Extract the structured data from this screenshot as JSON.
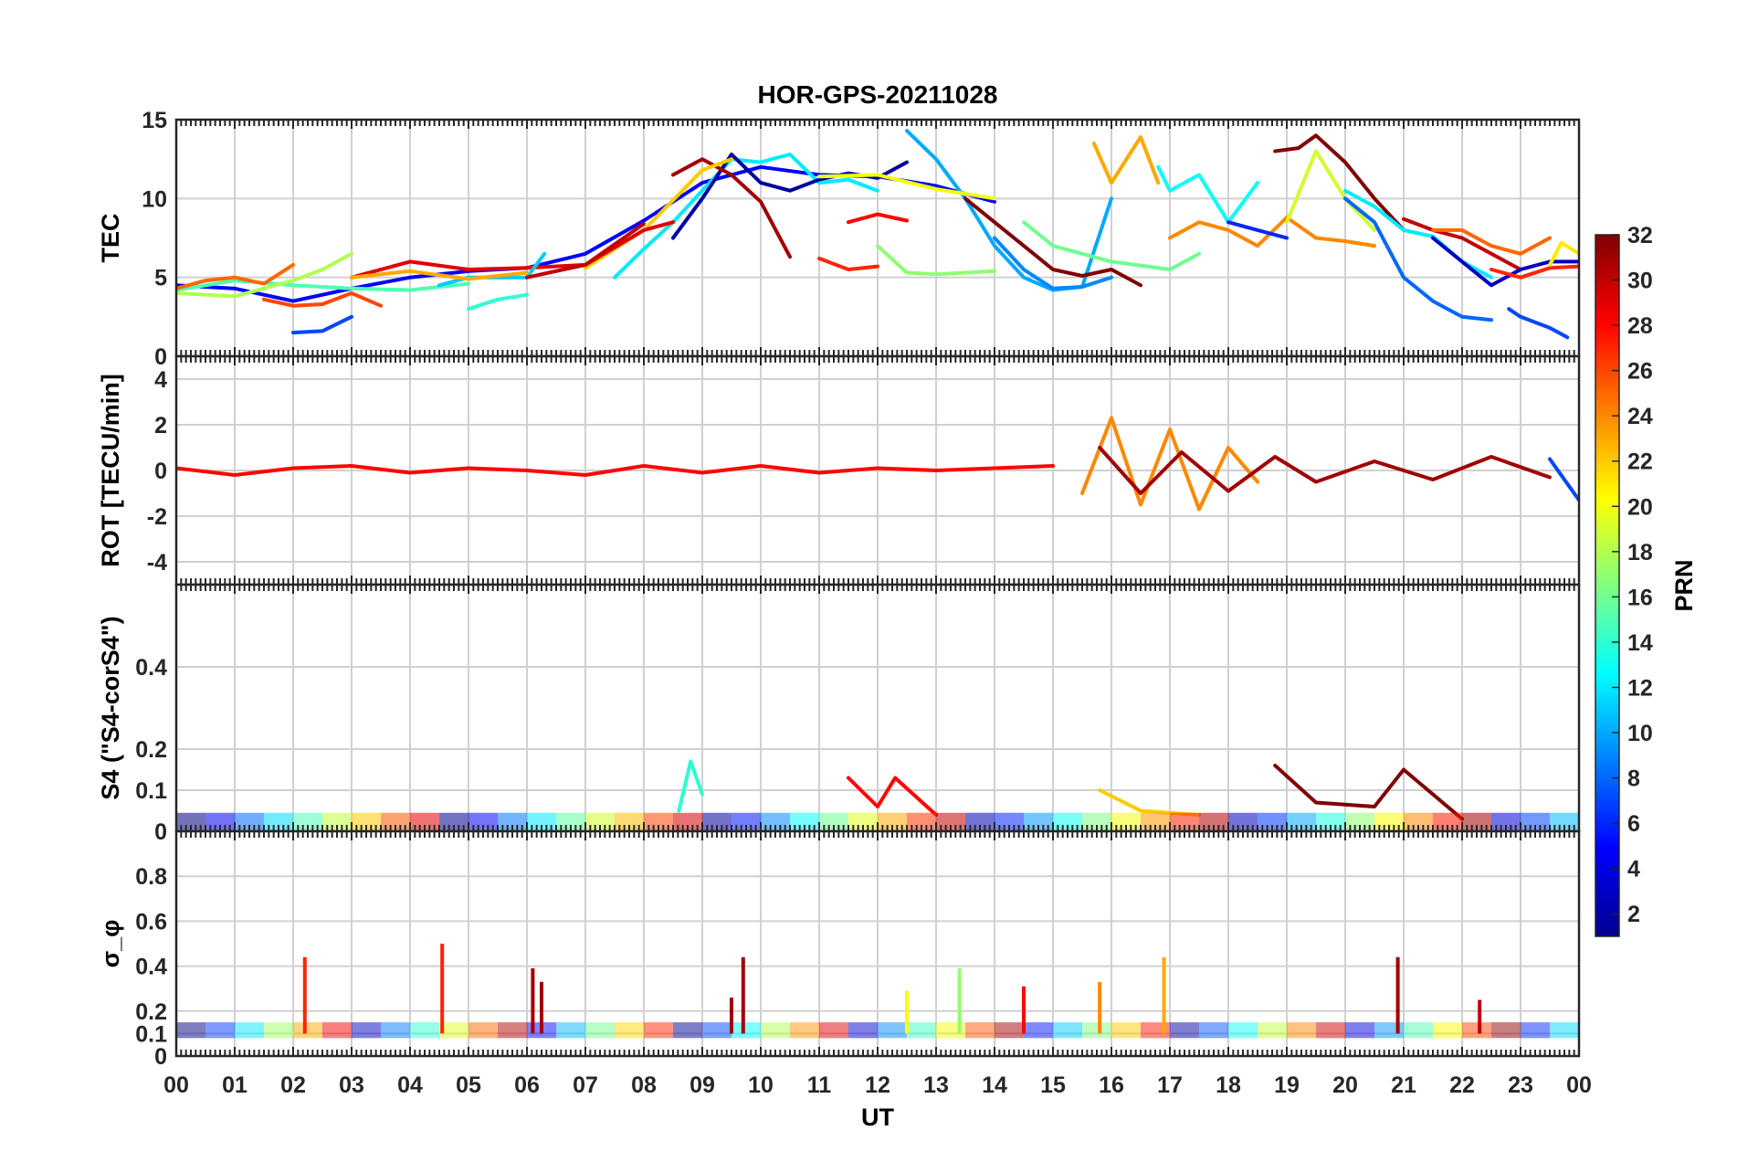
{
  "title": "HOR-GPS-20211028",
  "x_axis": {
    "label": "UT",
    "tick_labels": [
      "00",
      "01",
      "02",
      "03",
      "04",
      "05",
      "06",
      "07",
      "08",
      "09",
      "10",
      "11",
      "12",
      "13",
      "14",
      "15",
      "16",
      "17",
      "18",
      "19",
      "20",
      "21",
      "22",
      "23",
      "00"
    ]
  },
  "colorbar": {
    "label": "PRN",
    "range": [
      1,
      32
    ],
    "tick_labels": [
      "2",
      "4",
      "6",
      "8",
      "10",
      "12",
      "14",
      "16",
      "18",
      "20",
      "22",
      "24",
      "26",
      "28",
      "30",
      "32"
    ]
  },
  "chart_data": [
    {
      "type": "line",
      "id": "tec",
      "ylabel": "TEC",
      "ylim": [
        0,
        15
      ],
      "yticks": [
        0,
        5,
        10,
        15
      ],
      "ytick_labels": [
        "0",
        "5",
        "10",
        "15"
      ],
      "xlim": [
        0,
        24
      ],
      "series": [
        {
          "name": "PRN 5",
          "prn": 5,
          "x": [
            0.0,
            1.0,
            2.0,
            3.0,
            4.0,
            5.0,
            6.0,
            7.0,
            8.0,
            9.0,
            10.0,
            11.0,
            12.0,
            13.0,
            14.0
          ],
          "y": [
            4.5,
            4.3,
            3.5,
            4.3,
            5.0,
            5.4,
            5.6,
            6.5,
            8.6,
            11.0,
            12.0,
            11.5,
            11.4,
            10.8,
            9.8
          ]
        },
        {
          "name": "PRN 10",
          "prn": 10,
          "x": [
            12.5,
            13.0,
            13.5,
            14.0,
            14.5,
            15.0,
            15.5,
            16.0
          ],
          "y": [
            14.3,
            12.5,
            10.0,
            7.0,
            5.0,
            4.2,
            4.4,
            10.0
          ]
        },
        {
          "name": "PRN 12",
          "prn": 12,
          "x": [
            7.5,
            8.0,
            8.5,
            9.0,
            9.5,
            10.0,
            10.5,
            11.0,
            11.5,
            12.0
          ],
          "y": [
            5.0,
            6.8,
            8.5,
            10.5,
            12.5,
            12.3,
            12.8,
            11.0,
            11.2,
            10.5
          ]
        },
        {
          "name": "PRN 2",
          "prn": 2,
          "x": [
            8.5,
            9.0,
            9.5,
            10.0,
            10.5,
            11.0,
            11.5,
            12.0,
            12.5
          ],
          "y": [
            7.5,
            10.0,
            12.8,
            11.0,
            10.5,
            11.2,
            11.6,
            11.3,
            12.3
          ]
        },
        {
          "name": "PRN 20",
          "prn": 20,
          "x": [
            11.0,
            12.0,
            13.0,
            14.0
          ],
          "y": [
            11.4,
            11.5,
            10.6,
            10.0
          ]
        },
        {
          "name": "PRN 17",
          "prn": 17,
          "x": [
            12.0,
            12.5,
            13.0,
            14.0
          ],
          "y": [
            7.0,
            5.3,
            5.2,
            5.4
          ]
        },
        {
          "name": "PRN 27",
          "prn": 27,
          "x": [
            11.0,
            11.5,
            12.0
          ],
          "y": [
            6.2,
            5.5,
            5.7
          ]
        },
        {
          "name": "PRN 28",
          "prn": 28,
          "x": [
            11.5,
            12.0,
            12.5
          ],
          "y": [
            8.5,
            9.0,
            8.6
          ]
        },
        {
          "name": "PRN 31",
          "prn": 31,
          "x": [
            8.5,
            9.0,
            9.5,
            10.0,
            10.5
          ],
          "y": [
            11.5,
            12.5,
            11.5,
            9.8,
            6.3
          ]
        },
        {
          "name": "PRN 22",
          "prn": 22,
          "x": [
            7.0,
            8.0,
            9.0,
            9.5
          ],
          "y": [
            5.6,
            8.0,
            11.8,
            12.5
          ]
        },
        {
          "name": "PRN 29",
          "prn": 29,
          "x": [
            3.0,
            4.0,
            5.0,
            6.0,
            7.0,
            8.0,
            8.5
          ],
          "y": [
            5.0,
            6.0,
            5.5,
            5.6,
            5.8,
            8.0,
            8.5
          ]
        },
        {
          "name": "PRN 26",
          "prn": 26,
          "x": [
            1.5,
            2.0,
            2.5,
            3.0,
            3.5
          ],
          "y": [
            3.6,
            3.2,
            3.3,
            4.0,
            3.2
          ]
        },
        {
          "name": "PRN 7",
          "prn": 7,
          "x": [
            2.0,
            2.5,
            3.0
          ],
          "y": [
            1.5,
            1.6,
            2.5
          ]
        },
        {
          "name": "PRN 15",
          "prn": 15,
          "x": [
            0.0,
            1.0,
            2.0,
            3.0,
            4.0,
            5.0
          ],
          "y": [
            4.2,
            4.8,
            4.5,
            4.3,
            4.2,
            4.6
          ]
        },
        {
          "name": "PRN 18",
          "prn": 18,
          "x": [
            0.0,
            1.0,
            2.0,
            2.5,
            3.0
          ],
          "y": [
            4.0,
            3.8,
            4.8,
            5.5,
            6.5
          ]
        },
        {
          "name": "PRN 14",
          "prn": 14,
          "x": [
            5.0,
            5.5,
            6.0
          ],
          "y": [
            3.0,
            3.6,
            3.9
          ]
        },
        {
          "name": "PRN 11",
          "prn": 11,
          "x": [
            4.5,
            5.0,
            6.0,
            6.3
          ],
          "y": [
            4.5,
            5.0,
            5.0,
            6.5
          ]
        },
        {
          "name": "PRN 25",
          "prn": 25,
          "x": [
            0.0,
            0.5,
            1.0,
            1.5,
            2.0
          ],
          "y": [
            4.3,
            4.8,
            5.0,
            4.6,
            5.8
          ]
        },
        {
          "name": "PRN 23",
          "prn": 23,
          "x": [
            3.0,
            4.0,
            5.0,
            6.0
          ],
          "y": [
            5.0,
            5.4,
            4.9,
            5.3
          ]
        },
        {
          "name": "PRN 30",
          "prn": 30,
          "x": [
            6.0,
            7.0,
            8.0
          ],
          "y": [
            5.0,
            5.8,
            8.4
          ]
        },
        {
          "name": "PRN 32",
          "prn": 32,
          "x": [
            13.5,
            14.0,
            14.5,
            15.0,
            15.5,
            16.0,
            16.5
          ],
          "y": [
            10.0,
            8.5,
            7.0,
            5.5,
            5.1,
            5.5,
            4.5
          ]
        },
        {
          "name": "PRN 9",
          "prn": 9,
          "x": [
            14.0,
            14.5,
            15.0,
            15.5,
            16.0
          ],
          "y": [
            7.5,
            5.5,
            4.3,
            4.4,
            5.0
          ]
        },
        {
          "name": "PRN 23b",
          "prn": 23,
          "x": [
            15.7,
            16.0,
            16.5,
            16.8
          ],
          "y": [
            13.5,
            11.0,
            13.9,
            11.0
          ]
        },
        {
          "name": "PRN 13",
          "prn": 13,
          "x": [
            16.8,
            17.0,
            17.5,
            18.0,
            18.5
          ],
          "y": [
            12.0,
            10.5,
            11.5,
            8.5,
            11.0
          ]
        },
        {
          "name": "PRN 16",
          "prn": 16,
          "x": [
            14.5,
            15.0,
            16.0,
            17.0,
            17.5
          ],
          "y": [
            8.5,
            7.0,
            6.0,
            5.5,
            6.5
          ]
        },
        {
          "name": "PRN 24",
          "prn": 24,
          "x": [
            17.0,
            17.5,
            18.0,
            18.5,
            19.0,
            19.5,
            20.0,
            20.5
          ],
          "y": [
            7.5,
            8.5,
            8.0,
            7.0,
            8.8,
            7.5,
            7.3,
            7.0
          ]
        },
        {
          "name": "PRN 32b",
          "prn": 32,
          "x": [
            18.8,
            19.2,
            19.5,
            20.0,
            20.5,
            21.0
          ],
          "y": [
            13.0,
            13.2,
            14.0,
            12.3,
            10.0,
            8.0
          ]
        },
        {
          "name": "PRN 19",
          "prn": 19,
          "x": [
            19.0,
            19.5,
            20.0,
            20.5
          ],
          "y": [
            8.5,
            13.0,
            10.0,
            8.0
          ]
        },
        {
          "name": "PRN 6",
          "prn": 6,
          "x": [
            18.0,
            18.5,
            19.0
          ],
          "y": [
            8.5,
            8.0,
            7.5
          ]
        },
        {
          "name": "PRN 12b",
          "prn": 12,
          "x": [
            20.0,
            20.5,
            21.0,
            21.5,
            22.0,
            22.5
          ],
          "y": [
            10.5,
            9.5,
            8.0,
            7.6,
            6.0,
            5.0
          ]
        },
        {
          "name": "PRN 8",
          "prn": 8,
          "x": [
            20.0,
            20.5,
            21.0,
            21.5,
            22.0,
            22.5
          ],
          "y": [
            10.0,
            8.5,
            5.0,
            3.5,
            2.5,
            2.3
          ]
        },
        {
          "name": "PRN 30b",
          "prn": 30,
          "x": [
            21.0,
            21.5,
            22.0,
            22.5,
            23.0
          ],
          "y": [
            8.7,
            8.0,
            7.5,
            6.5,
            5.5
          ]
        },
        {
          "name": "PRN 25b",
          "prn": 25,
          "x": [
            21.5,
            22.0,
            22.5,
            23.0,
            23.5
          ],
          "y": [
            8.0,
            8.0,
            7.0,
            6.5,
            7.5
          ]
        },
        {
          "name": "PRN 3",
          "prn": 3,
          "x": [
            21.5,
            22.0,
            22.5,
            23.0,
            23.5,
            24.0
          ],
          "y": [
            7.5,
            6.0,
            4.5,
            5.5,
            6.0,
            6.0
          ]
        },
        {
          "name": "PRN 27b",
          "prn": 27,
          "x": [
            22.5,
            23.0,
            23.5,
            24.0
          ],
          "y": [
            5.5,
            5.0,
            5.6,
            5.7
          ]
        },
        {
          "name": "PRN 7b",
          "prn": 7,
          "x": [
            22.8,
            23.0,
            23.5,
            23.8
          ],
          "y": [
            3.0,
            2.5,
            1.8,
            1.2
          ]
        },
        {
          "name": "PRN 21",
          "prn": 21,
          "x": [
            23.5,
            23.7,
            24.0
          ],
          "y": [
            5.8,
            7.2,
            6.5
          ]
        }
      ]
    },
    {
      "type": "line",
      "id": "rot",
      "ylabel": "ROT [TECU/min]",
      "ylim": [
        -5,
        5
      ],
      "yticks": [
        -4,
        -2,
        0,
        2,
        4
      ],
      "ytick_labels": [
        "-4",
        "-2",
        "0",
        "2",
        "4"
      ],
      "xlim": [
        0,
        24
      ],
      "series": [
        {
          "name": "PRN 28 (00-15 UT)",
          "prn": 28,
          "x": [
            0,
            1,
            2,
            3,
            4,
            5,
            6,
            7,
            8,
            9,
            10,
            11,
            12,
            13,
            14,
            15
          ],
          "y": [
            0.1,
            -0.2,
            0.1,
            0.2,
            -0.1,
            0.1,
            0.0,
            -0.2,
            0.2,
            -0.1,
            0.2,
            -0.1,
            0.1,
            0.0,
            0.1,
            0.2
          ]
        },
        {
          "name": "PRN 24 (15.5-18.5 UT)",
          "prn": 24,
          "x": [
            15.5,
            16.0,
            16.5,
            17.0,
            17.5,
            18.0,
            18.5
          ],
          "y": [
            -1.0,
            2.3,
            -1.5,
            1.8,
            -1.7,
            1.0,
            -0.5
          ]
        },
        {
          "name": "PRN 31 (15.5-24 UT)",
          "prn": 31,
          "x": [
            15.8,
            16.5,
            17.2,
            18.0,
            18.8,
            19.5,
            20.5,
            21.5,
            22.5,
            23.5
          ],
          "y": [
            1.0,
            -1.0,
            0.8,
            -0.9,
            0.6,
            -0.5,
            0.4,
            -0.4,
            0.6,
            -0.3
          ]
        },
        {
          "name": "PRN 7 (24 UT)",
          "prn": 7,
          "x": [
            23.5,
            24.0
          ],
          "y": [
            0.5,
            -1.3
          ]
        }
      ]
    },
    {
      "type": "line",
      "id": "s4",
      "ylabel": "S4 (\"S4-corS4\")",
      "ylim": [
        0,
        0.6
      ],
      "yticks": [
        0,
        0.1,
        0.2,
        0.4
      ],
      "ytick_labels": [
        "0",
        "0.1",
        "0.2",
        "0.4"
      ],
      "xlim": [
        0,
        24
      ],
      "series": [
        {
          "name": "PRN 14",
          "prn": 14,
          "x": [
            8.6,
            8.8,
            9.0
          ],
          "y": [
            0.05,
            0.17,
            0.09
          ]
        },
        {
          "name": "PRN 32",
          "prn": 32,
          "x": [
            18.8,
            19.5,
            20.5,
            21.0,
            22.0
          ],
          "y": [
            0.16,
            0.07,
            0.06,
            0.15,
            0.03
          ]
        },
        {
          "name": "PRN 28",
          "prn": 28,
          "x": [
            11.5,
            12.0,
            12.3,
            13.0
          ],
          "y": [
            0.13,
            0.06,
            0.13,
            0.04
          ]
        },
        {
          "name": "PRN 22",
          "prn": 22,
          "x": [
            15.8,
            16.5,
            17.5
          ],
          "y": [
            0.1,
            0.05,
            0.04
          ]
        }
      ]
    },
    {
      "type": "line",
      "id": "sigma_phi",
      "ylabel": "σ_φ",
      "ylim": [
        0,
        1
      ],
      "yticks": [
        0,
        0.1,
        0.2,
        0.4,
        0.6,
        0.8
      ],
      "ytick_labels": [
        "0",
        "0.1",
        "0.2",
        "0.4",
        "0.6",
        "0.8"
      ],
      "xlim": [
        0,
        24
      ],
      "spikes": [
        {
          "x": 2.2,
          "y": 0.44,
          "prn": 27
        },
        {
          "x": 4.55,
          "y": 0.5,
          "prn": 27
        },
        {
          "x": 6.1,
          "y": 0.39,
          "prn": 31
        },
        {
          "x": 6.25,
          "y": 0.33,
          "prn": 31
        },
        {
          "x": 9.7,
          "y": 0.44,
          "prn": 31
        },
        {
          "x": 9.5,
          "y": 0.26,
          "prn": 31
        },
        {
          "x": 12.5,
          "y": 0.29,
          "prn": 20
        },
        {
          "x": 13.4,
          "y": 0.39,
          "prn": 17
        },
        {
          "x": 14.5,
          "y": 0.31,
          "prn": 28
        },
        {
          "x": 15.8,
          "y": 0.33,
          "prn": 24
        },
        {
          "x": 16.9,
          "y": 0.44,
          "prn": 23
        },
        {
          "x": 20.9,
          "y": 0.44,
          "prn": 31
        },
        {
          "x": 22.3,
          "y": 0.25,
          "prn": 30
        }
      ]
    }
  ]
}
